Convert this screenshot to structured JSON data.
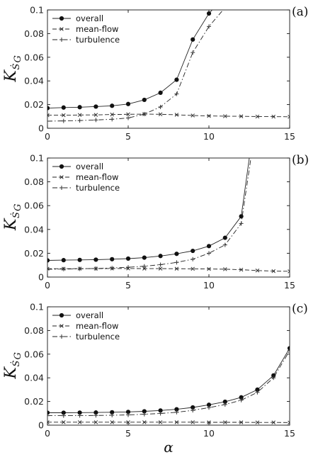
{
  "chart_data": [
    {
      "type": "line",
      "panel_label": "(a)",
      "ylabel_main": "K",
      "ylabel_sub": "Ṡ",
      "ylabel_subsub": "G",
      "xlabel": "",
      "xlim": [
        0,
        15
      ],
      "ylim": [
        0,
        0.1
      ],
      "xticks": [
        "0",
        "5",
        "10",
        "15"
      ],
      "yticks": [
        "0",
        "0.02",
        "0.04",
        "0.06",
        "0.08",
        "0.1"
      ],
      "legend_position": "top-left",
      "grid": false,
      "series": [
        {
          "name": "overall",
          "style": "solid",
          "marker": "dot",
          "x": [
            0,
            1,
            2,
            3,
            4,
            5,
            6,
            7,
            8,
            9,
            10,
            11
          ],
          "y": [
            0.017,
            0.0175,
            0.0178,
            0.0183,
            0.019,
            0.0205,
            0.024,
            0.03,
            0.041,
            0.075,
            0.097,
            0.112
          ]
        },
        {
          "name": "mean-flow",
          "style": "dashed",
          "marker": "x",
          "x": [
            0,
            1,
            2,
            3,
            4,
            5,
            6,
            7,
            8,
            9,
            10,
            11,
            12,
            13,
            14,
            15
          ],
          "y": [
            0.011,
            0.011,
            0.0112,
            0.0113,
            0.0116,
            0.0118,
            0.012,
            0.0118,
            0.0114,
            0.0108,
            0.0104,
            0.0102,
            0.0101,
            0.0099,
            0.0098,
            0.0097
          ]
        },
        {
          "name": "turbulence",
          "style": "dashdot",
          "marker": "plus",
          "x": [
            0,
            1,
            2,
            3,
            4,
            5,
            6,
            7,
            8,
            9,
            10,
            11
          ],
          "y": [
            0.006,
            0.0062,
            0.0065,
            0.007,
            0.0076,
            0.0087,
            0.012,
            0.018,
            0.029,
            0.064,
            0.086,
            0.102
          ]
        }
      ]
    },
    {
      "type": "line",
      "panel_label": "(b)",
      "ylabel_main": "K",
      "ylabel_sub": "Ṡ",
      "ylabel_subsub": "G",
      "xlabel": "",
      "xlim": [
        0,
        15
      ],
      "ylim": [
        0,
        0.1
      ],
      "xticks": [
        "0",
        "5",
        "10",
        "15"
      ],
      "yticks": [
        "0",
        "0.02",
        "0.04",
        "0.06",
        "0.08",
        "0.1"
      ],
      "legend_position": "top-left",
      "grid": false,
      "series": [
        {
          "name": "overall",
          "style": "solid",
          "marker": "dot",
          "x": [
            0,
            1,
            2,
            3,
            4,
            5,
            6,
            7,
            8,
            9,
            10,
            11,
            12,
            12.5
          ],
          "y": [
            0.014,
            0.0142,
            0.0144,
            0.0146,
            0.015,
            0.0155,
            0.0163,
            0.0177,
            0.0195,
            0.022,
            0.026,
            0.033,
            0.051,
            0.1
          ]
        },
        {
          "name": "mean-flow",
          "style": "dashed",
          "marker": "x",
          "x": [
            0,
            1,
            2,
            3,
            4,
            5,
            6,
            7,
            8,
            9,
            10,
            11,
            12,
            13,
            14,
            15
          ],
          "y": [
            0.007,
            0.007,
            0.0071,
            0.0071,
            0.0072,
            0.0072,
            0.0071,
            0.0071,
            0.007,
            0.0069,
            0.0068,
            0.0066,
            0.0062,
            0.0055,
            0.005,
            0.0048
          ]
        },
        {
          "name": "turbulence",
          "style": "dashdot",
          "marker": "plus",
          "x": [
            0,
            1,
            2,
            3,
            4,
            5,
            6,
            7,
            8,
            9,
            10,
            11,
            12,
            12.6
          ],
          "y": [
            0.0065,
            0.0067,
            0.0069,
            0.0072,
            0.0076,
            0.0082,
            0.0091,
            0.0104,
            0.0123,
            0.015,
            0.02,
            0.027,
            0.045,
            0.1
          ]
        }
      ]
    },
    {
      "type": "line",
      "panel_label": "(c)",
      "ylabel_main": "K",
      "ylabel_sub": "Ṡ",
      "ylabel_subsub": "G",
      "xlabel": "α",
      "xlim": [
        0,
        15
      ],
      "ylim": [
        0,
        0.1
      ],
      "xticks": [
        "0",
        "5",
        "10",
        "15"
      ],
      "yticks": [
        "0",
        "0.02",
        "0.04",
        "0.06",
        "0.08",
        "0.1"
      ],
      "legend_position": "top-left",
      "grid": false,
      "series": [
        {
          "name": "overall",
          "style": "solid",
          "marker": "dot",
          "x": [
            0,
            1,
            2,
            3,
            4,
            5,
            6,
            7,
            8,
            9,
            10,
            11,
            12,
            13,
            14,
            15
          ],
          "y": [
            0.0105,
            0.0105,
            0.0106,
            0.0107,
            0.0109,
            0.0112,
            0.0117,
            0.0124,
            0.0134,
            0.015,
            0.0172,
            0.0198,
            0.0235,
            0.03,
            0.042,
            0.065
          ]
        },
        {
          "name": "mean-flow",
          "style": "dashed",
          "marker": "x",
          "x": [
            0,
            1,
            2,
            3,
            4,
            5,
            6,
            7,
            8,
            9,
            10,
            11,
            12,
            13,
            14,
            15
          ],
          "y": [
            0.0025,
            0.0025,
            0.0025,
            0.0025,
            0.0025,
            0.0025,
            0.0025,
            0.0025,
            0.0025,
            0.0025,
            0.0024,
            0.0024,
            0.0024,
            0.0023,
            0.0023,
            0.0022
          ]
        },
        {
          "name": "turbulence",
          "style": "dashdot",
          "marker": "plus",
          "x": [
            0,
            1,
            2,
            3,
            4,
            5,
            6,
            7,
            8,
            9,
            10,
            11,
            12,
            13,
            14,
            15
          ],
          "y": [
            0.008,
            0.008,
            0.0081,
            0.0082,
            0.0084,
            0.0087,
            0.0092,
            0.0099,
            0.0109,
            0.0125,
            0.0148,
            0.0174,
            0.0211,
            0.0277,
            0.04,
            0.063
          ]
        }
      ]
    }
  ]
}
